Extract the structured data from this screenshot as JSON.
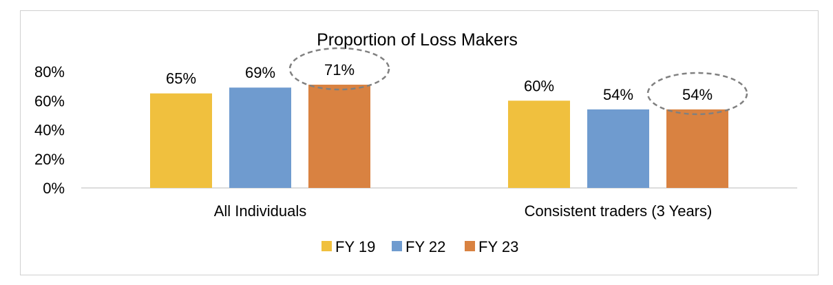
{
  "chart_data": {
    "type": "bar",
    "title": "Proportion of Loss Makers",
    "categories": [
      "All Individuals",
      "Consistent traders (3 Years)"
    ],
    "series": [
      {
        "name": "FY 19",
        "values": [
          65,
          60
        ],
        "labels": [
          "65%",
          "60%"
        ],
        "color": "#F0C03E"
      },
      {
        "name": "FY 22",
        "values": [
          69,
          54
        ],
        "labels": [
          "69%",
          "54%"
        ],
        "color": "#6F9BCF"
      },
      {
        "name": "FY 23",
        "values": [
          71,
          54
        ],
        "labels": [
          "71%",
          "54%"
        ],
        "color": "#D98241"
      }
    ],
    "yticks": [
      "0%",
      "20%",
      "40%",
      "60%",
      "80%"
    ],
    "ylim": [
      0,
      80
    ],
    "grid": false,
    "legend": "bottom",
    "highlighted": [
      "FY 23"
    ]
  }
}
